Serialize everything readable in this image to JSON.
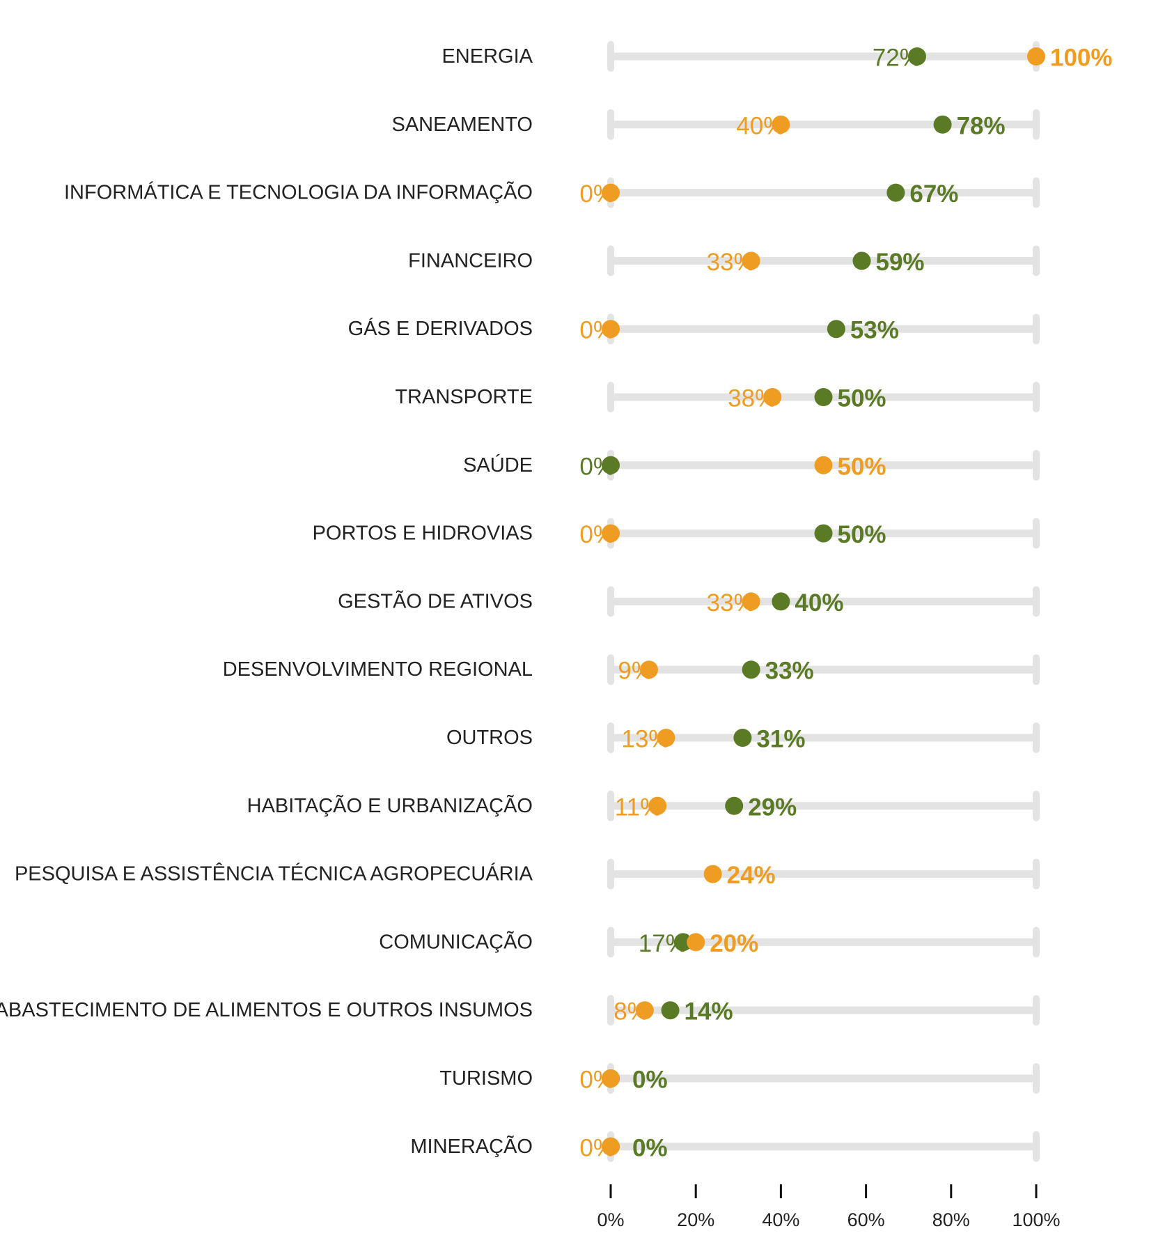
{
  "chart_data": {
    "type": "dot-plot",
    "title": "",
    "xlabel": "",
    "ylabel": "",
    "xlim": [
      0,
      100
    ],
    "grid": false,
    "legend": "none",
    "colors": {
      "green": "#5a7a26",
      "orange": "#ee9c22",
      "track": "#e3e3e3",
      "label": "#222222",
      "axis": "#111111"
    },
    "x_ticks": [
      "0%",
      "20%",
      "40%",
      "60%",
      "80%",
      "100%"
    ],
    "x_tick_values": [
      0,
      20,
      40,
      60,
      80,
      100
    ],
    "categories": [
      "ENERGIA",
      "SANEAMENTO",
      "INFORMÁTICA E TECNOLOGIA DA INFORMAÇÃO",
      "FINANCEIRO",
      "GÁS E DERIVADOS",
      "TRANSPORTE",
      "SAÚDE",
      "PORTOS E HIDROVIAS",
      "GESTÃO DE ATIVOS",
      "DESENVOLVIMENTO REGIONAL",
      "OUTROS",
      "HABITAÇÃO E URBANIZAÇÃO",
      "PESQUISA E ASSISTÊNCIA TÉCNICA AGROPECUÁRIA",
      "COMUNICAÇÃO",
      "ABASTECIMENTO DE ALIMENTOS E OUTROS INSUMOS",
      "TURISMO",
      "MINERAÇÃO"
    ],
    "series": [
      {
        "color": "green",
        "values": [
          72,
          78,
          67,
          59,
          53,
          50,
          0,
          50,
          40,
          33,
          31,
          29,
          null,
          17,
          14,
          0,
          0
        ],
        "labels": [
          "72%",
          "78%",
          "67%",
          "59%",
          "53%",
          "50%",
          "0%",
          "50%",
          "40%",
          "33%",
          "31%",
          "29%",
          null,
          "17%",
          "14%",
          "0%",
          "0%"
        ]
      },
      {
        "color": "orange",
        "values": [
          100,
          40,
          0,
          33,
          0,
          38,
          50,
          0,
          33,
          9,
          13,
          11,
          24,
          20,
          8,
          0,
          0
        ],
        "labels": [
          "100%",
          "40%",
          "0%",
          "33%",
          "0%",
          "38%",
          "50%",
          "0%",
          "33%",
          "9%",
          "13%",
          "11%",
          "24%",
          "20%",
          "8%",
          "0%",
          "0%"
        ]
      }
    ]
  }
}
